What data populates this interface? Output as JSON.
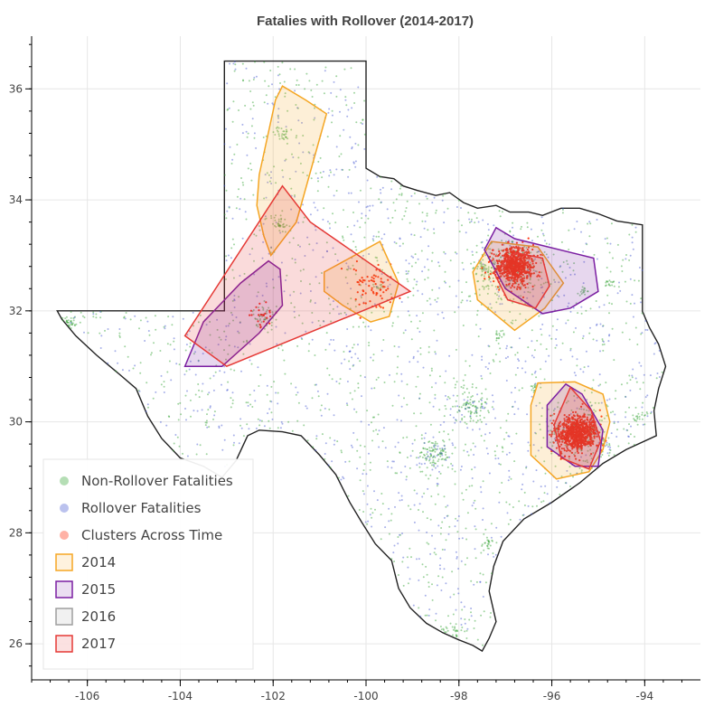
{
  "chart_data": {
    "type": "scatter",
    "title": "Fatalies with Rollover (2014-2017)",
    "xlabel": "",
    "ylabel": "",
    "xlim": [
      -107.2,
      -92.8
    ],
    "ylim": [
      25.35,
      36.95
    ],
    "x_ticks": [
      "-106",
      "-104",
      "-102",
      "-100",
      "-98",
      "-96",
      "-94"
    ],
    "x_tick_values": [
      -106,
      -104,
      -102,
      -100,
      -98,
      -96,
      -94
    ],
    "y_ticks": [
      "26",
      "28",
      "30",
      "32",
      "34",
      "36"
    ],
    "y_tick_values": [
      26,
      28,
      30,
      32,
      34,
      36
    ],
    "grid": true,
    "legend_position": "bottom-left",
    "colors": {
      "non_rollover": "#2ca02c",
      "rollover": "#3b50ce",
      "clusters": "#ff2200",
      "y2014": "#f5a623",
      "y2015": "#7b1fa2",
      "y2016": "#9e9e9e",
      "y2017": "#e53935"
    },
    "legend": [
      {
        "label": "Non-Rollover Fatalities",
        "kind": "dot",
        "color": "#2ca02c"
      },
      {
        "label": "Rollover Fatalities",
        "kind": "dot",
        "color": "#3b50ce"
      },
      {
        "label": "Clusters Across Time",
        "kind": "dot",
        "color": "#ff2200"
      },
      {
        "label": "2014",
        "kind": "box",
        "color": "#f5a623"
      },
      {
        "label": "2015",
        "kind": "box",
        "color": "#7b1fa2"
      },
      {
        "label": "2016",
        "kind": "box",
        "color": "#9e9e9e"
      },
      {
        "label": "2017",
        "kind": "box",
        "color": "#e53935"
      }
    ],
    "texas_outline": [
      [
        -103.05,
        36.5
      ],
      [
        -100.0,
        36.5
      ],
      [
        -100.0,
        34.57
      ],
      [
        -99.7,
        34.42
      ],
      [
        -99.4,
        34.38
      ],
      [
        -99.2,
        34.25
      ],
      [
        -98.9,
        34.17
      ],
      [
        -98.5,
        34.08
      ],
      [
        -98.2,
        34.13
      ],
      [
        -97.9,
        33.95
      ],
      [
        -97.6,
        33.85
      ],
      [
        -97.2,
        33.9
      ],
      [
        -96.9,
        33.78
      ],
      [
        -96.5,
        33.78
      ],
      [
        -96.2,
        33.72
      ],
      [
        -95.8,
        33.85
      ],
      [
        -95.4,
        33.85
      ],
      [
        -95.0,
        33.75
      ],
      [
        -94.6,
        33.62
      ],
      [
        -94.05,
        33.55
      ],
      [
        -94.05,
        31.99
      ],
      [
        -93.9,
        31.7
      ],
      [
        -93.7,
        31.4
      ],
      [
        -93.55,
        31.0
      ],
      [
        -93.7,
        30.6
      ],
      [
        -93.8,
        30.2
      ],
      [
        -93.75,
        29.75
      ],
      [
        -94.4,
        29.5
      ],
      [
        -94.9,
        29.25
      ],
      [
        -95.4,
        28.9
      ],
      [
        -96.0,
        28.55
      ],
      [
        -96.6,
        28.25
      ],
      [
        -97.05,
        27.85
      ],
      [
        -97.25,
        27.4
      ],
      [
        -97.35,
        26.95
      ],
      [
        -97.2,
        26.4
      ],
      [
        -97.35,
        26.1
      ],
      [
        -97.5,
        25.87
      ],
      [
        -97.7,
        25.97
      ],
      [
        -98.0,
        26.07
      ],
      [
        -98.35,
        26.2
      ],
      [
        -98.7,
        26.37
      ],
      [
        -99.05,
        26.65
      ],
      [
        -99.3,
        27.0
      ],
      [
        -99.45,
        27.5
      ],
      [
        -99.8,
        27.8
      ],
      [
        -100.1,
        28.2
      ],
      [
        -100.35,
        28.55
      ],
      [
        -100.65,
        29.05
      ],
      [
        -101.0,
        29.4
      ],
      [
        -101.4,
        29.75
      ],
      [
        -101.8,
        29.82
      ],
      [
        -102.3,
        29.85
      ],
      [
        -102.55,
        29.75
      ],
      [
        -102.8,
        29.3
      ],
      [
        -103.1,
        29.0
      ],
      [
        -103.5,
        29.2
      ],
      [
        -104.0,
        29.35
      ],
      [
        -104.4,
        29.7
      ],
      [
        -104.7,
        30.1
      ],
      [
        -104.95,
        30.6
      ],
      [
        -105.3,
        30.85
      ],
      [
        -105.8,
        31.2
      ],
      [
        -106.25,
        31.55
      ],
      [
        -106.55,
        31.85
      ],
      [
        -106.65,
        32.0
      ],
      [
        -103.05,
        32.0
      ]
    ],
    "series": [
      {
        "name": "Non-Rollover Fatalities",
        "color": "#2ca02c",
        "hotspots": [
          {
            "x": -96.8,
            "y": 32.78,
            "n": 160,
            "spread": 0.35
          },
          {
            "x": -97.35,
            "y": 32.75,
            "n": 90,
            "spread": 0.25
          },
          {
            "x": -95.37,
            "y": 29.76,
            "n": 180,
            "spread": 0.4
          },
          {
            "x": -98.5,
            "y": 29.42,
            "n": 90,
            "spread": 0.18
          },
          {
            "x": -97.74,
            "y": 30.27,
            "n": 80,
            "spread": 0.18
          },
          {
            "x": -101.85,
            "y": 33.58,
            "n": 30,
            "spread": 0.08
          },
          {
            "x": -101.83,
            "y": 35.2,
            "n": 25,
            "spread": 0.08
          },
          {
            "x": -102.2,
            "y": 31.9,
            "n": 45,
            "spread": 0.12
          },
          {
            "x": -106.4,
            "y": 31.78,
            "n": 35,
            "spread": 0.1
          },
          {
            "x": -98.2,
            "y": 26.2,
            "n": 40,
            "spread": 0.15
          },
          {
            "x": -97.4,
            "y": 27.8,
            "n": 20,
            "spread": 0.08
          },
          {
            "x": -94.1,
            "y": 30.08,
            "n": 20,
            "spread": 0.08
          },
          {
            "x": -94.75,
            "y": 32.5,
            "n": 15,
            "spread": 0.06
          },
          {
            "x": -95.3,
            "y": 32.35,
            "n": 15,
            "spread": 0.06
          },
          {
            "x": -99.75,
            "y": 32.45,
            "n": 12,
            "spread": 0.05
          },
          {
            "x": -97.15,
            "y": 31.55,
            "n": 15,
            "spread": 0.06
          },
          {
            "x": -96.35,
            "y": 30.63,
            "n": 12,
            "spread": 0.05
          }
        ],
        "background_count": 1100
      },
      {
        "name": "Rollover Fatalities",
        "color": "#3b50ce",
        "hotspots": [
          {
            "x": -96.8,
            "y": 32.78,
            "n": 40,
            "spread": 0.4
          },
          {
            "x": -95.37,
            "y": 29.76,
            "n": 40,
            "spread": 0.45
          },
          {
            "x": -98.5,
            "y": 29.42,
            "n": 25,
            "spread": 0.2
          },
          {
            "x": -97.74,
            "y": 30.27,
            "n": 20,
            "spread": 0.2
          }
        ],
        "background_count": 900
      },
      {
        "name": "Clusters Across Time",
        "color": "#ff2200",
        "hotspots": [
          {
            "x": -96.8,
            "y": 32.82,
            "n": 650,
            "spread": 0.2
          },
          {
            "x": -95.45,
            "y": 29.8,
            "n": 750,
            "spread": 0.2
          },
          {
            "x": -99.85,
            "y": 32.4,
            "n": 70,
            "spread": 0.25
          },
          {
            "x": -102.2,
            "y": 31.9,
            "n": 25,
            "spread": 0.15
          }
        ],
        "background_count": 0
      }
    ],
    "hulls": [
      {
        "year": "2014",
        "color": "#f5a623",
        "points": [
          [
            -101.8,
            36.05
          ],
          [
            -101.3,
            35.8
          ],
          [
            -100.85,
            35.55
          ],
          [
            -101.5,
            33.6
          ],
          [
            -102.05,
            33.0
          ],
          [
            -102.2,
            33.35
          ],
          [
            -102.35,
            33.9
          ],
          [
            -102.3,
            34.45
          ],
          [
            -101.95,
            35.8
          ]
        ]
      },
      {
        "year": "2014",
        "color": "#f5a623",
        "points": [
          [
            -100.9,
            32.7
          ],
          [
            -99.7,
            33.25
          ],
          [
            -99.3,
            32.5
          ],
          [
            -99.5,
            31.9
          ],
          [
            -99.9,
            31.8
          ],
          [
            -100.5,
            32.1
          ],
          [
            -100.9,
            32.35
          ]
        ]
      },
      {
        "year": "2014",
        "color": "#f5a623",
        "points": [
          [
            -97.3,
            33.25
          ],
          [
            -96.3,
            33.15
          ],
          [
            -95.75,
            32.5
          ],
          [
            -96.15,
            32.05
          ],
          [
            -96.8,
            31.65
          ],
          [
            -97.6,
            32.2
          ],
          [
            -97.7,
            32.7
          ]
        ]
      },
      {
        "year": "2014",
        "color": "#f5a623",
        "points": [
          [
            -96.3,
            30.7
          ],
          [
            -95.5,
            30.72
          ],
          [
            -94.9,
            30.5
          ],
          [
            -94.75,
            30.0
          ],
          [
            -94.9,
            29.5
          ],
          [
            -95.2,
            29.1
          ],
          [
            -95.9,
            28.97
          ],
          [
            -96.45,
            29.4
          ],
          [
            -96.45,
            30.3
          ]
        ]
      },
      {
        "year": "2015",
        "color": "#7b1fa2",
        "points": [
          [
            -102.1,
            32.9
          ],
          [
            -101.85,
            32.75
          ],
          [
            -101.8,
            32.1
          ],
          [
            -102.3,
            31.6
          ],
          [
            -103.1,
            31.0
          ],
          [
            -103.9,
            31.0
          ],
          [
            -103.5,
            31.8
          ],
          [
            -102.7,
            32.5
          ]
        ]
      },
      {
        "year": "2015",
        "color": "#7b1fa2",
        "points": [
          [
            -97.2,
            33.5
          ],
          [
            -96.8,
            33.3
          ],
          [
            -95.1,
            32.95
          ],
          [
            -95.0,
            32.35
          ],
          [
            -95.6,
            32.05
          ],
          [
            -96.2,
            31.95
          ],
          [
            -97.0,
            32.4
          ],
          [
            -97.45,
            33.1
          ]
        ]
      },
      {
        "year": "2015",
        "color": "#7b1fa2",
        "points": [
          [
            -95.7,
            30.68
          ],
          [
            -95.35,
            30.5
          ],
          [
            -94.9,
            29.85
          ],
          [
            -95.0,
            29.2
          ],
          [
            -95.5,
            29.2
          ],
          [
            -96.1,
            29.55
          ],
          [
            -96.1,
            30.3
          ]
        ]
      },
      {
        "year": "2017",
        "color": "#e53935",
        "points": [
          [
            -101.8,
            34.25
          ],
          [
            -101.2,
            33.6
          ],
          [
            -99.05,
            32.35
          ],
          [
            -103.0,
            31.0
          ],
          [
            -103.9,
            31.55
          ]
        ]
      },
      {
        "year": "2017",
        "color": "#e53935",
        "points": [
          [
            -96.8,
            33.05
          ],
          [
            -96.2,
            32.95
          ],
          [
            -96.05,
            32.45
          ],
          [
            -96.35,
            32.05
          ],
          [
            -96.95,
            32.2
          ],
          [
            -97.25,
            32.7
          ]
        ]
      },
      {
        "year": "2017",
        "color": "#e53935",
        "points": [
          [
            -95.6,
            30.62
          ],
          [
            -95.15,
            30.2
          ],
          [
            -94.95,
            29.65
          ],
          [
            -95.2,
            29.15
          ],
          [
            -95.8,
            29.35
          ],
          [
            -95.95,
            29.95
          ]
        ]
      }
    ]
  }
}
